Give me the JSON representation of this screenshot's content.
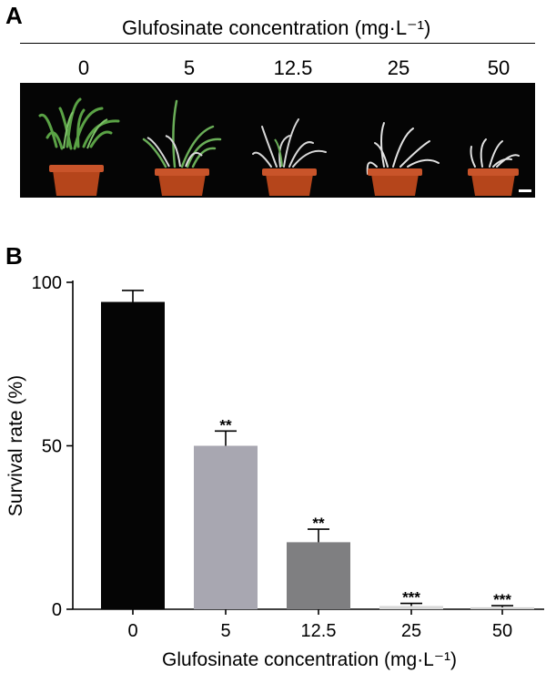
{
  "panel_a": {
    "label": "A",
    "header": "Glufosinate concentration (mg·L⁻¹)",
    "concentrations": [
      "0",
      "5",
      "12.5",
      "25",
      "50"
    ],
    "photo": {
      "description_icon": "plant-pot-icon",
      "background": "#050505",
      "pot_color": "#b5451b",
      "healthy_leaf_color": "#5aa245",
      "dead_leaf_color": "#d8d8d8",
      "scale_bar": true
    }
  },
  "panel_b": {
    "label": "B"
  },
  "chart_data": {
    "type": "bar",
    "categories": [
      "0",
      "5",
      "12.5",
      "25",
      "50"
    ],
    "values": [
      94,
      50,
      20.5,
      1.0,
      0.6
    ],
    "errors": [
      3.5,
      4.5,
      4.0,
      0.8,
      0.5
    ],
    "significance": [
      "",
      "**",
      "**",
      "***",
      "***"
    ],
    "colors": [
      "#050505",
      "#a8a7b1",
      "#7f7f81",
      "#d9d9d9",
      "#cfcfcf"
    ],
    "xlabel": "Glufosinate concentration (mg·L⁻¹)",
    "ylabel": "Survival rate (%)",
    "ylim": [
      0,
      100
    ],
    "yticks": [
      0,
      50,
      100
    ],
    "grid": false
  }
}
